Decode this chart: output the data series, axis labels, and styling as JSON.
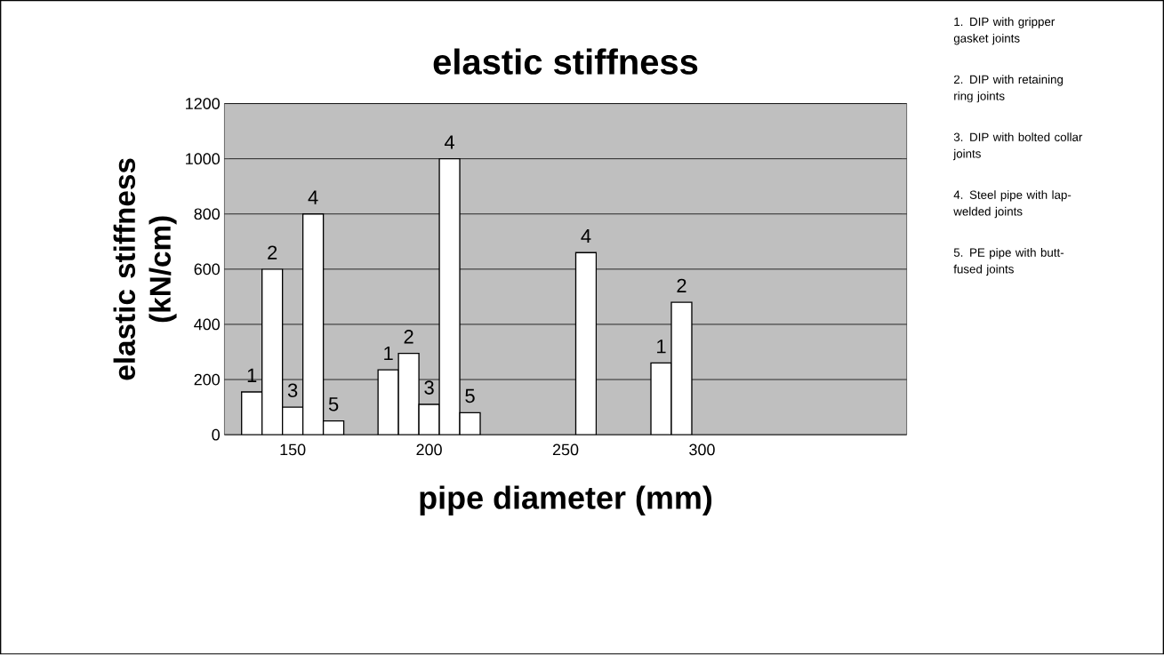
{
  "chart_data": {
    "type": "bar",
    "title": "elastic stiffness",
    "xlabel": "pipe diameter (mm)",
    "ylabel": "elastic stiffness (kN/cm)",
    "categories": [
      "150",
      "200",
      "250",
      "300",
      null
    ],
    "series": [
      {
        "name": "1",
        "color": "#ffffff",
        "values": [
          155,
          235,
          null,
          260,
          null
        ]
      },
      {
        "name": "2",
        "color": "#ffffff",
        "values": [
          600,
          295,
          null,
          480,
          null
        ]
      },
      {
        "name": "3",
        "color": "#ffffff",
        "values": [
          100,
          110,
          null,
          null,
          null
        ]
      },
      {
        "name": "4",
        "color": "#ffffff",
        "values": [
          800,
          1000,
          660,
          null,
          null
        ]
      },
      {
        "name": "5",
        "color": "#ffffff",
        "values": [
          50,
          80,
          null,
          null,
          null
        ]
      }
    ],
    "ylim": [
      0,
      1200
    ],
    "yticks": [
      0,
      200,
      400,
      600,
      800,
      1000,
      1200
    ],
    "grid": "y",
    "annotations": [
      "1. DIP with gripper gasket joints",
      "2.  DIP with retaining ring joints",
      "3.  DIP with bolted collar joints",
      "4.  Steel pipe with lap-welded joints",
      "5. PE pipe with butt-fused joints"
    ]
  }
}
